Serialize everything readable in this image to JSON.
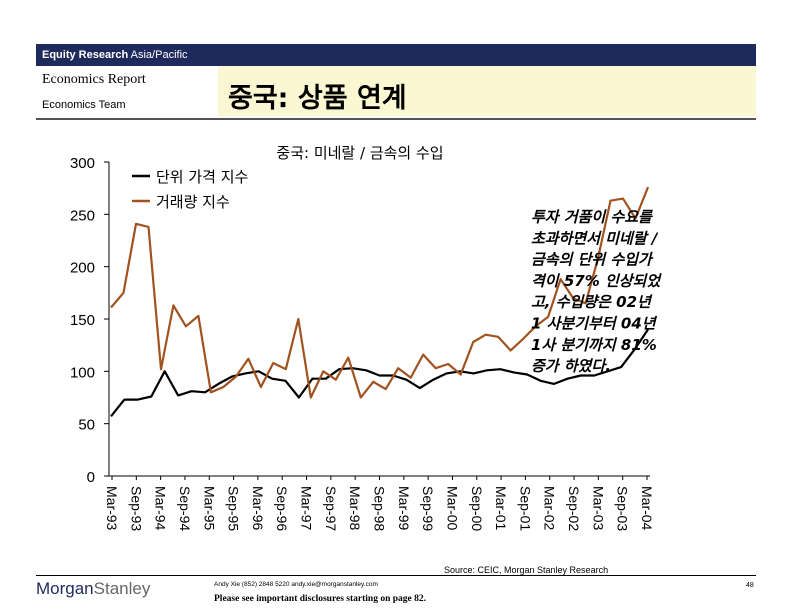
{
  "header": {
    "bar_label_bold": "Equity Research",
    "bar_label_region": "Asia/Pacific",
    "report_type": "Economics Report",
    "team": "Economics Team",
    "slide_title": "중국: 상품 연계"
  },
  "colors": {
    "header_bar": "#1f2a5c",
    "title_box": "#fbf7d2",
    "unit_price_line": "#000000",
    "volume_line": "#a0521f"
  },
  "chart_data": {
    "type": "line",
    "title": "중국: 미네랄 / 금속의 수입",
    "ylim": [
      0,
      300
    ],
    "yticks": [
      0,
      50,
      100,
      150,
      200,
      250,
      300
    ],
    "xtick_labels": [
      "Mar-93",
      "Sep-93",
      "Mar-94",
      "Sep-94",
      "Mar-95",
      "Sep-95",
      "Mar-96",
      "Sep-96",
      "Mar-97",
      "Sep-97",
      "Mar-98",
      "Sep-98",
      "Mar-99",
      "Sep-99",
      "Mar-00",
      "Sep-00",
      "Mar-01",
      "Sep-01",
      "Mar-02",
      "Sep-02",
      "Mar-03",
      "Sep-03",
      "Mar-04"
    ],
    "legend_position": "top-left",
    "series": [
      {
        "name": "단위 가격 지수",
        "color": "#000000",
        "values": [
          57,
          73,
          73,
          76,
          100,
          77,
          81,
          80,
          88,
          95,
          98,
          100,
          93,
          91,
          75,
          93,
          93,
          102,
          103,
          101,
          96,
          96,
          92,
          84,
          92,
          98,
          100,
          98,
          101,
          102,
          99,
          97,
          91,
          88,
          93,
          96,
          96,
          100,
          104,
          121,
          140
        ]
      },
      {
        "name": "거래량 지수",
        "color": "#a0521f",
        "values": [
          161,
          175,
          241,
          238,
          102,
          163,
          143,
          153,
          80,
          85,
          95,
          112,
          85,
          108,
          102,
          150,
          75,
          100,
          92,
          113,
          75,
          90,
          83,
          103,
          94,
          116,
          103,
          107,
          97,
          128,
          135,
          133,
          120,
          131,
          143,
          152,
          188,
          170,
          165,
          208,
          263,
          265,
          246,
          276
        ]
      }
    ],
    "annotation": "투자 거품이 수요를 초과하면서 미네랄 / 금속의 단위 수입가 격이 57% 인상되었 고, 수입량은 02년 1 사분기부터 04년 1사 분기까지 81% 증가 하였다.",
    "source": "Source: CEIC, Morgan Stanley Research"
  },
  "footer": {
    "logo_morgan": "Morgan",
    "logo_stanley": "Stanley",
    "contact": "Andy Xie (852) 2848 5220 andy.xie@morganstanley.com",
    "disclosure": "Please see important disclosures starting on page 82.",
    "page_number": "48"
  }
}
